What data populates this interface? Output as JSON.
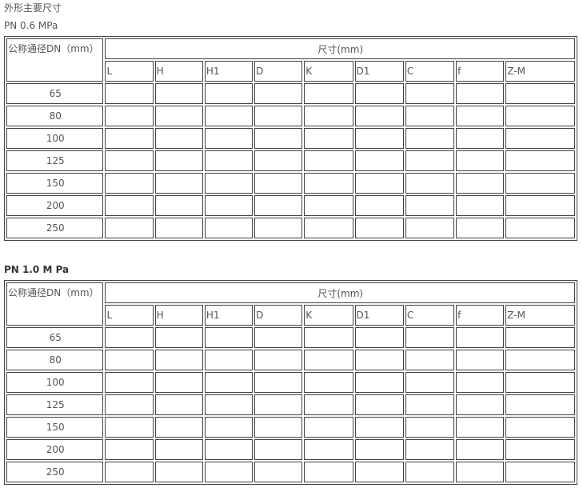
{
  "title": "外形主要尺寸",
  "sections": [
    {
      "label": "PN 0.6 MPa"
    },
    {
      "label": "PN 1.0 M Pa"
    }
  ],
  "table": {
    "dn_header": "公称通径DN（mm）",
    "dim_header": "尺寸(mm)",
    "columns": [
      "L",
      "H",
      "H1",
      "D",
      "K",
      "D1",
      "C",
      "f",
      "Z-M"
    ],
    "rows": [
      "65",
      "80",
      "100",
      "125",
      "150",
      "200",
      "250"
    ]
  }
}
